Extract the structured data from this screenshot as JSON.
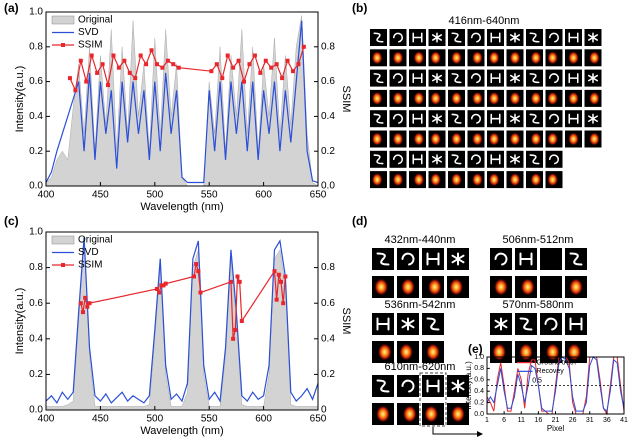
{
  "panel_labels": [
    "(a)",
    "(b)",
    "(c)",
    "(d)",
    "(e)"
  ],
  "grid_title": "416nm-640nm",
  "range_labels": [
    "432nm-440nm",
    "506nm-512nm",
    "536nm-542nm",
    "570nm-580nm",
    "610nm-620nm"
  ],
  "chart_data": [
    {
      "type": "line",
      "xlabel": "Wavelength (nm)",
      "ylabel": "Intensity(a.u.)",
      "y2label": "SSIM",
      "xlim": [
        400,
        650
      ],
      "xticks": [
        400,
        450,
        500,
        550,
        600,
        650
      ],
      "ylim": [
        0,
        1
      ],
      "yticks": [
        {
          "value": 0,
          "label": "0.0"
        },
        0.2,
        0.4,
        0.6,
        0.8,
        {
          "value": 1,
          "label": "1.0"
        }
      ],
      "y2lim": [
        0,
        1
      ],
      "y2ticks": [
        {
          "value": 0,
          "label": "0.0"
        },
        0.2,
        0.4,
        0.6,
        0.8
      ],
      "legend": "upper left",
      "x": [
        400,
        405,
        410,
        415,
        420,
        425,
        430,
        435,
        440,
        445,
        450,
        455,
        460,
        465,
        470,
        475,
        480,
        485,
        490,
        495,
        500,
        505,
        510,
        515,
        520,
        525,
        530,
        535,
        540,
        545,
        550,
        555,
        560,
        565,
        570,
        575,
        580,
        585,
        590,
        595,
        600,
        605,
        610,
        615,
        620,
        625,
        630,
        635,
        640,
        645,
        650
      ],
      "series": [
        {
          "name": "Original",
          "style": "area",
          "color": "#d3d3d3",
          "values": [
            0.02,
            0.05,
            0.15,
            0.2,
            0.15,
            0.45,
            0.7,
            0.3,
            0.8,
            0.2,
            0.75,
            0.35,
            0.9,
            0.2,
            0.8,
            0.3,
            0.95,
            0.4,
            0.7,
            0.2,
            0.85,
            0.3,
            0.9,
            0.4,
            0.7,
            0.05,
            0,
            0,
            0,
            0,
            0.6,
            0.3,
            0.8,
            0.2,
            0.75,
            0.4,
            0.9,
            0.3,
            0.8,
            0.2,
            0.7,
            0.4,
            0.85,
            0.3,
            0.75,
            0.35,
            0.8,
            0.98,
            0.3,
            0.02,
            0
          ]
        },
        {
          "name": "SVD",
          "style": "line",
          "color": "#2b4fd8",
          "values": [
            0.02,
            0.08,
            0.2,
            0.3,
            0.4,
            0.5,
            0.6,
            0.2,
            0.65,
            0.15,
            0.6,
            0.3,
            0.55,
            0.1,
            0.6,
            0.25,
            0.6,
            0.3,
            0.55,
            0.15,
            0.6,
            0.2,
            0.65,
            0.3,
            0.55,
            0.05,
            0.02,
            0.02,
            0.02,
            0.02,
            0.55,
            0.2,
            0.6,
            0.15,
            0.6,
            0.3,
            0.6,
            0.2,
            0.6,
            0.15,
            0.55,
            0.3,
            0.6,
            0.2,
            0.55,
            0.25,
            0.6,
            0.95,
            0.2,
            0.03,
            0.02
          ]
        },
        {
          "name": "SSIM",
          "style": "marker",
          "color": "#e8262b",
          "axis": "y2",
          "x": [
            422,
            427,
            432,
            437,
            442,
            447,
            452,
            457,
            462,
            467,
            472,
            477,
            482,
            487,
            492,
            497,
            502,
            507,
            512,
            517,
            522,
            552,
            557,
            562,
            567,
            572,
            577,
            582,
            587,
            592,
            597,
            602,
            607,
            612,
            617,
            622,
            627,
            632,
            637
          ],
          "values": [
            0.62,
            0.55,
            0.72,
            0.6,
            0.75,
            0.65,
            0.7,
            0.58,
            0.75,
            0.68,
            0.72,
            0.65,
            0.62,
            0.75,
            0.7,
            0.78,
            0.7,
            0.68,
            0.72,
            0.7,
            0.68,
            0.66,
            0.7,
            0.62,
            0.75,
            0.68,
            0.72,
            0.6,
            0.7,
            0.75,
            0.65,
            0.72,
            0.68,
            0.7,
            0.62,
            0.72,
            0.66,
            0.7,
            0.8
          ]
        }
      ]
    },
    {
      "type": "line",
      "xlabel": "Wavelength (nm)",
      "ylabel": "Intensity(a.u.)",
      "y2label": "SSIM",
      "xlim": [
        400,
        650
      ],
      "xticks": [
        400,
        450,
        500,
        550,
        600,
        650
      ],
      "ylim": [
        0,
        1
      ],
      "yticks": [
        {
          "value": 0,
          "label": "0.0"
        },
        0.2,
        0.4,
        0.6,
        0.8,
        {
          "value": 1,
          "label": "1.0"
        }
      ],
      "y2lim": [
        0,
        1
      ],
      "y2ticks": [
        0,
        0.2,
        0.4,
        0.6,
        0.8
      ],
      "legend": "upper left",
      "x": [
        400,
        405,
        410,
        415,
        420,
        425,
        430,
        435,
        440,
        445,
        450,
        455,
        460,
        465,
        470,
        475,
        480,
        485,
        490,
        495,
        500,
        505,
        510,
        515,
        520,
        525,
        530,
        535,
        540,
        545,
        550,
        555,
        560,
        565,
        570,
        575,
        580,
        585,
        590,
        595,
        600,
        605,
        610,
        615,
        620,
        625,
        630,
        635,
        640,
        645,
        650
      ],
      "series": [
        {
          "name": "Original",
          "style": "area",
          "color": "#d3d3d3",
          "values": [
            0.02,
            0.02,
            0.02,
            0.02,
            0.03,
            0.05,
            0.5,
            0.95,
            0.3,
            0.02,
            0.02,
            0.02,
            0.02,
            0.02,
            0.02,
            0.02,
            0.02,
            0.02,
            0.02,
            0.03,
            0.4,
            0.8,
            0.2,
            0.02,
            0.02,
            0.02,
            0.1,
            0.8,
            0.9,
            0.2,
            0.02,
            0.02,
            0.02,
            0.3,
            0.85,
            0.5,
            0.03,
            0.02,
            0.02,
            0.02,
            0.02,
            0.2,
            0.85,
            0.9,
            0.7,
            0.03,
            0.02,
            0.02,
            0.02,
            0.02,
            0.02
          ]
        },
        {
          "name": "SVD",
          "style": "line",
          "color": "#2b4fd8",
          "values": [
            0.05,
            0.08,
            0.04,
            0.1,
            0.06,
            0.1,
            0.55,
            0.97,
            0.35,
            0.08,
            0.05,
            0.09,
            0.04,
            0.07,
            0.1,
            0.05,
            0.08,
            0.06,
            0.04,
            0.08,
            0.45,
            0.85,
            0.25,
            0.06,
            0.09,
            0.05,
            0.15,
            0.85,
            0.95,
            0.25,
            0.06,
            0.1,
            0.05,
            0.35,
            0.9,
            0.55,
            0.08,
            0.05,
            0.1,
            0.06,
            0.08,
            0.25,
            0.9,
            0.95,
            0.75,
            0.1,
            0.05,
            0.08,
            0.12,
            0.06,
            0.15
          ]
        },
        {
          "name": "SSIM",
          "style": "marker",
          "color": "#e8262b",
          "axis": "y2",
          "x": [
            432,
            434,
            436,
            438,
            440,
            502,
            504,
            506,
            508,
            510,
            536,
            538,
            540,
            542,
            570,
            572,
            574,
            576,
            578,
            580,
            610,
            612,
            614,
            616,
            618,
            620
          ],
          "values": [
            0.6,
            0.55,
            0.63,
            0.58,
            0.6,
            0.68,
            0.66,
            0.7,
            0.7,
            0.71,
            0.75,
            0.82,
            0.78,
            0.66,
            0.72,
            0.4,
            0.45,
            0.75,
            0.72,
            0.5,
            0.78,
            0.62,
            0.76,
            0.72,
            0.6,
            0.75
          ]
        }
      ]
    },
    {
      "type": "line",
      "xlabel": "Pixel",
      "ylabel": "Intensity(a.u.)",
      "xlim": [
        1,
        41
      ],
      "xticks": [
        1,
        6,
        11,
        16,
        21,
        26,
        31,
        36,
        41
      ],
      "ylim": [
        0,
        1
      ],
      "yticks": [
        {
          "value": 0,
          "label": "0.0"
        },
        0.2,
        0.4,
        0.6,
        0.8,
        {
          "value": 1,
          "label": "1.0"
        }
      ],
      "reference_line": 0.5,
      "legend": "upper center",
      "x": [
        1,
        2,
        3,
        4,
        5,
        6,
        7,
        8,
        9,
        10,
        11,
        12,
        13,
        14,
        15,
        16,
        17,
        18,
        19,
        20,
        21,
        22,
        23,
        24,
        25,
        26,
        27,
        28,
        29,
        30,
        31,
        32,
        33,
        34,
        35,
        36,
        37,
        38,
        39,
        40,
        41
      ],
      "series": [
        {
          "name": "Ground truth",
          "style": "line",
          "color": "#e8262b",
          "values": [
            0.3,
            0.2,
            0.05,
            0.6,
            0.9,
            0.5,
            0.05,
            0.05,
            0.4,
            0.8,
            0.6,
            0.1,
            0.7,
            0.95,
            0.95,
            0.5,
            0.05,
            0.05,
            0,
            0,
            0.5,
            1,
            1,
            1,
            0.9,
            0.2,
            0,
            0,
            0,
            0.3,
            1,
            1,
            1,
            0.6,
            0.1,
            0,
            0.5,
            1,
            1,
            0.5,
            0.05
          ]
        },
        {
          "name": "Recovey",
          "style": "line",
          "color": "#2b4fd8",
          "values": [
            0.2,
            0.3,
            0.2,
            0.5,
            0.8,
            0.4,
            0.1,
            0.1,
            0.3,
            0.7,
            0.5,
            0.2,
            0.5,
            0.85,
            0.8,
            0.5,
            0.1,
            0.05,
            0.05,
            0.05,
            0.4,
            0.9,
            1,
            0.95,
            0.8,
            0.3,
            0.05,
            0.05,
            0.05,
            0.2,
            0.85,
            1,
            0.95,
            0.5,
            0.1,
            0.05,
            0.4,
            0.95,
            0.9,
            0.4,
            0.1
          ]
        }
      ]
    }
  ]
}
